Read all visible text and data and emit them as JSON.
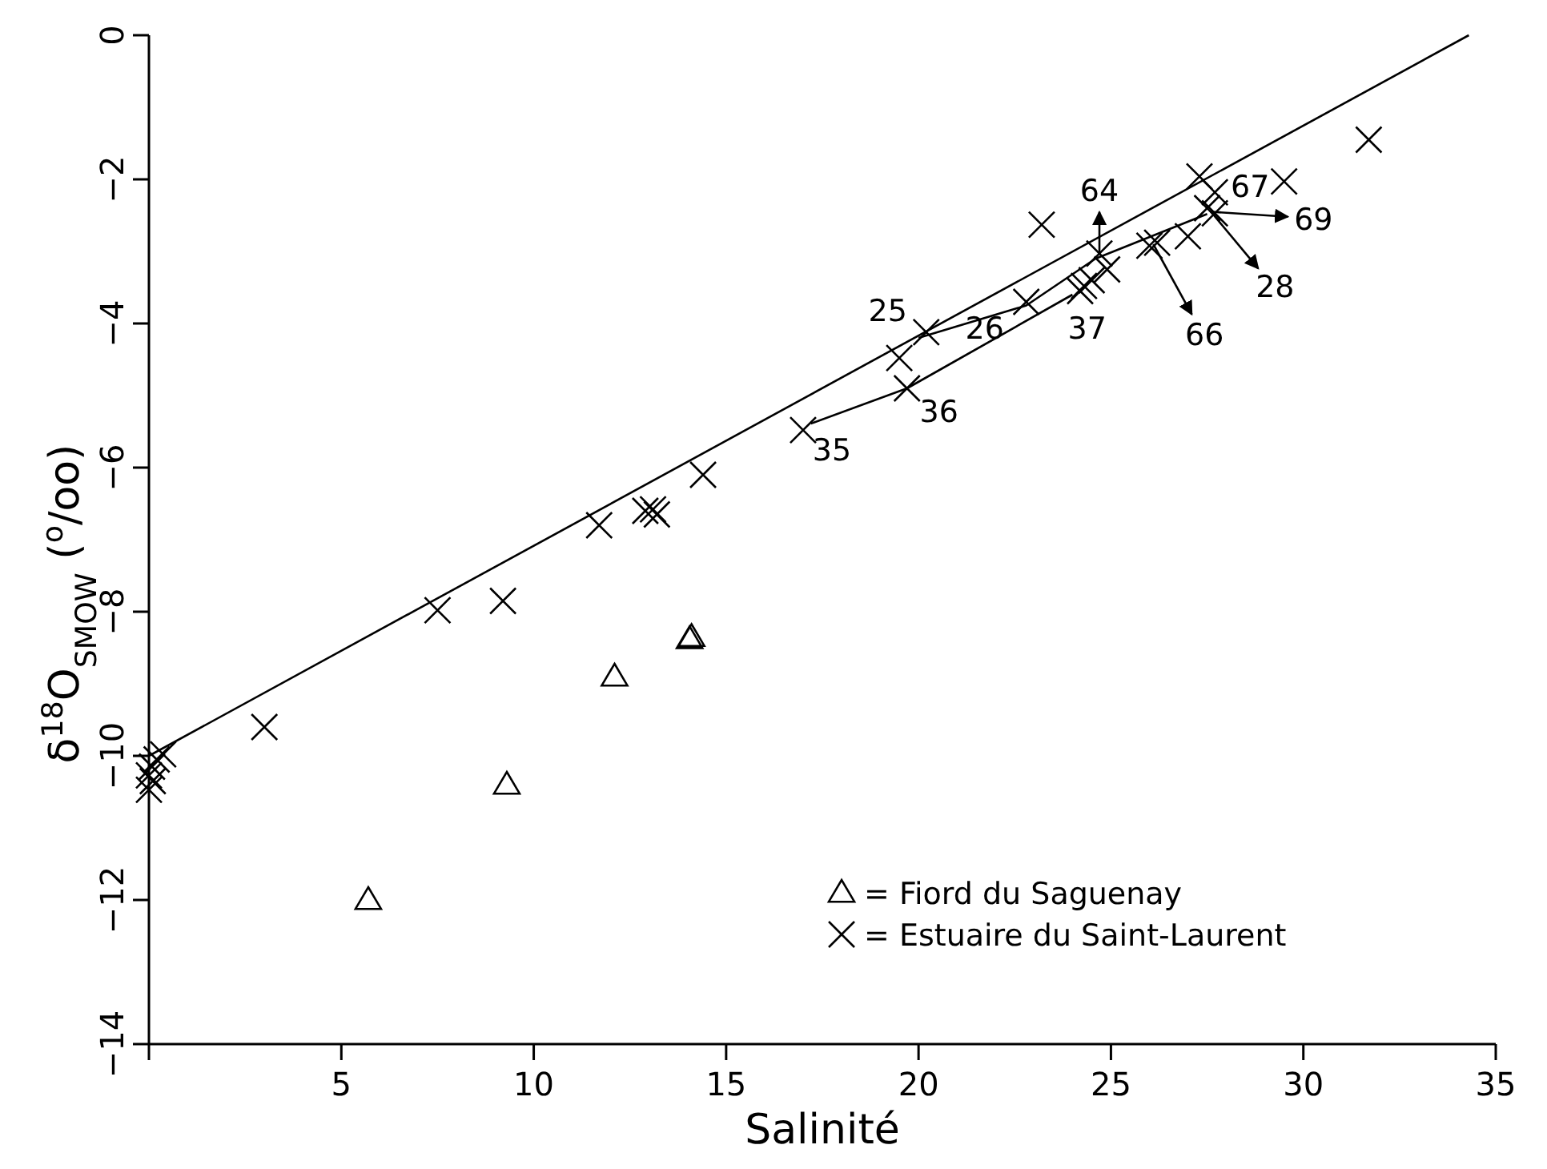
{
  "chart_data": {
    "type": "scatter",
    "xlabel": "Salinité",
    "ylabel": "δ$^{18}$O$_{SMOW}$  ($^{o}$/oo)",
    "xlim": [
      0,
      35
    ],
    "xticks": [
      5,
      10,
      15,
      20,
      25,
      30,
      35
    ],
    "ylim": [
      -14,
      0
    ],
    "yticks": [
      0,
      -2,
      -4,
      -6,
      -8,
      -10,
      -12,
      -14
    ],
    "grid": false,
    "legend": "bottom right",
    "series": [
      {
        "name": "= Fiord du Saguenay",
        "marker": "triangle",
        "color": "#000000",
        "x": [
          5.7,
          9.3,
          12.1,
          14.05,
          14.1
        ],
        "values": [
          -12.0,
          -10.4,
          -8.9,
          -8.38,
          -8.35
        ]
      },
      {
        "name": "= Estuaire du Saint-Laurent",
        "marker": "cross",
        "color": "#000000",
        "x": [
          0,
          0.1,
          0,
          0.08,
          0.2,
          0.37,
          3.0,
          7.5,
          9.2,
          11.7,
          12.9,
          13.1,
          13.2,
          14.4,
          17.0,
          19.5,
          19.7,
          20.2,
          22.8,
          23.2,
          24.2,
          24.3,
          24.5,
          24.7,
          24.9,
          26.0,
          26.2,
          27.0,
          27.3,
          27.5,
          27.7,
          27.7,
          29.5,
          31.7
        ],
        "values": [
          -10.47,
          -10.35,
          -10.27,
          -10.15,
          -10.05,
          -9.98,
          -9.6,
          -7.98,
          -7.85,
          -6.8,
          -6.6,
          -6.58,
          -6.65,
          -6.1,
          -5.48,
          -4.48,
          -4.9,
          -4.12,
          -3.7,
          -2.63,
          -3.55,
          -3.48,
          -3.4,
          -3.03,
          -3.25,
          -2.92,
          -2.88,
          -2.79,
          -1.96,
          -2.4,
          -2.47,
          -2.18,
          -2.03,
          -1.45
        ]
      },
      {
        "type": "line",
        "marker": "none",
        "line_style": "solid",
        "color": "#000000",
        "x": [
          0,
          34.3
        ],
        "values": [
          -10.0,
          0
        ]
      },
      {
        "type": "line",
        "marker": "none",
        "line_style": "solid",
        "color": "#000000",
        "x": [
          20.0,
          22.8,
          24.6,
          27.5
        ],
        "values": [
          -4.2,
          -3.75,
          -3.1,
          -2.48
        ]
      },
      {
        "type": "line",
        "marker": "none",
        "line_style": "solid",
        "color": "#000000",
        "x": [
          17.2,
          19.7,
          24.0
        ],
        "values": [
          -5.39,
          -4.9,
          -3.6
        ]
      }
    ],
    "annotations": [
      {
        "text": "25",
        "x": 20.2,
        "y": -4.12
      },
      {
        "text": "26",
        "x": 22.8,
        "y": -3.7
      },
      {
        "text": "35",
        "x": 17.0,
        "y": -5.48
      },
      {
        "text": "36",
        "x": 19.7,
        "y": -4.9
      },
      {
        "text": "37",
        "x": 24.3,
        "y": -3.48
      },
      {
        "text": "64",
        "x": 24.7,
        "y": -3.03
      },
      {
        "text": "67",
        "x": 27.7,
        "y": -2.18
      },
      {
        "text": "69",
        "x": 27.6,
        "y": -2.45
      },
      {
        "text": "28",
        "x": 27.6,
        "y": -2.45
      },
      {
        "text": "66",
        "x": 26.1,
        "y": -2.9
      }
    ]
  }
}
